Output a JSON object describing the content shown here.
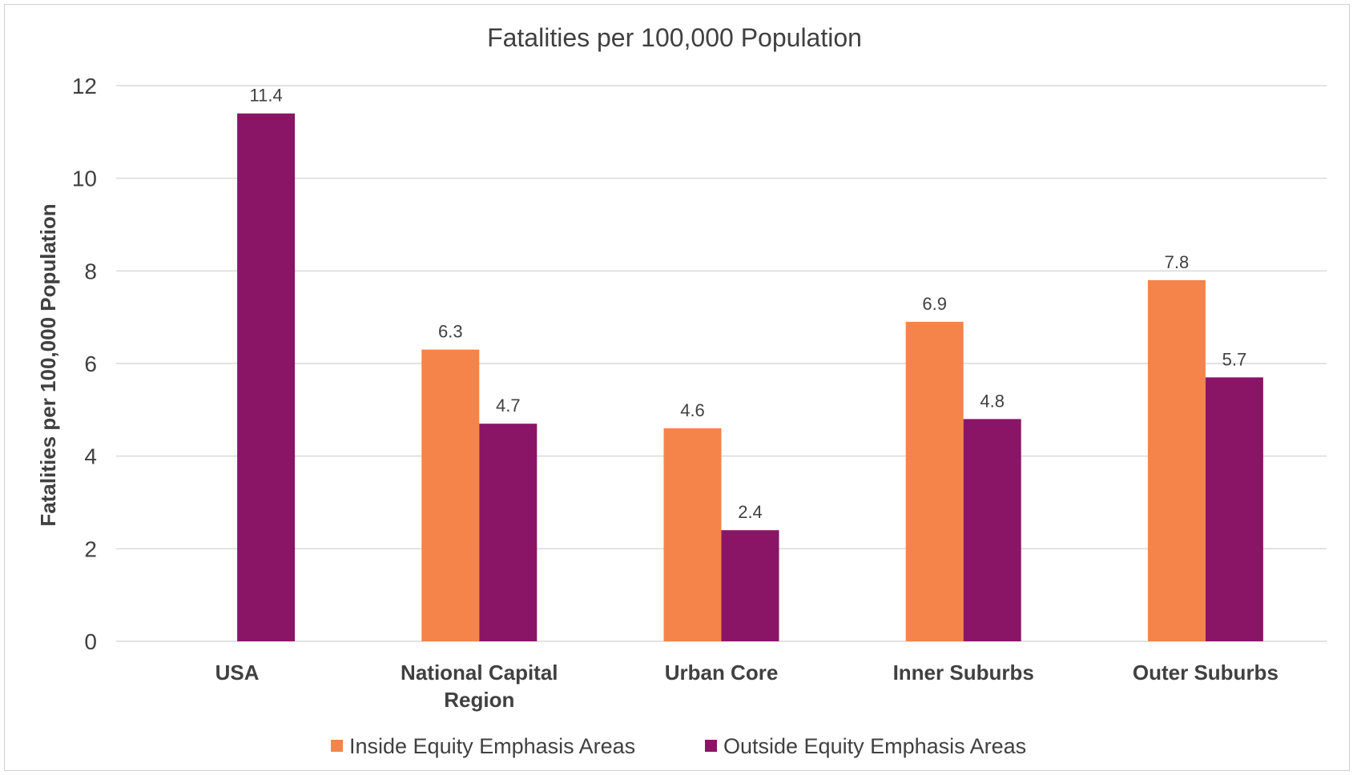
{
  "chart_data": {
    "type": "bar",
    "title": "Fatalities per 100,000 Population",
    "ylabel": "Fatalities per 100,000 Population",
    "xlabel": "",
    "ylim": [
      0,
      12
    ],
    "yticks": [
      0,
      2,
      4,
      6,
      8,
      10,
      12
    ],
    "grid": true,
    "legend_position": "bottom",
    "categories": [
      [
        "USA"
      ],
      [
        "National Capital",
        "Region"
      ],
      [
        "Urban Core"
      ],
      [
        "Inner Suburbs"
      ],
      [
        "Outer Suburbs"
      ]
    ],
    "series": [
      {
        "name": "Inside Equity Emphasis Areas",
        "color": "#F4844A",
        "values": [
          null,
          6.3,
          4.6,
          6.9,
          7.8
        ]
      },
      {
        "name": "Outside Equity Emphasis Areas",
        "color": "#8A1566",
        "values": [
          11.4,
          4.7,
          2.4,
          4.8,
          5.7
        ]
      }
    ]
  }
}
